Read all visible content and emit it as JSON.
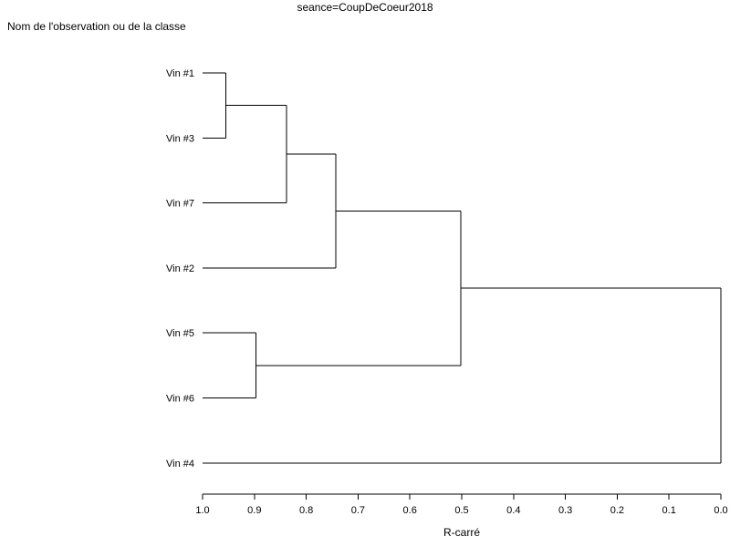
{
  "chart_data": {
    "type": "dendrogram",
    "title": "seance=CoupDeCoeur2018",
    "ylabel": "Nom de l'observation ou de la classe",
    "xlabel": "R-carré",
    "xlim": [
      1.0,
      0.0
    ],
    "xticks": [
      "1.0",
      "0.9",
      "0.8",
      "0.7",
      "0.6",
      "0.5",
      "0.4",
      "0.3",
      "0.2",
      "0.1",
      "0.0"
    ],
    "leaves": [
      "Vin #1",
      "Vin #3",
      "Vin #7",
      "Vin #2",
      "Vin #5",
      "Vin #6",
      "Vin #4"
    ],
    "merges": [
      {
        "a": "Vin #1",
        "b": "Vin #3",
        "r2": 0.955
      },
      {
        "a": "Vin #1+#3",
        "b": "Vin #7",
        "r2": 0.838
      },
      {
        "a": "Vin #1+#3+#7",
        "b": "Vin #2",
        "r2": 0.743
      },
      {
        "a": "Vin #5",
        "b": "Vin #6",
        "r2": 0.897
      },
      {
        "a": "Vin #1+#3+#7+#2",
        "b": "Vin #5+#6",
        "r2": 0.502
      },
      {
        "a": "Vin #1+#3+#7+#2+#5+#6",
        "b": "Vin #4",
        "r2": 0.0
      }
    ],
    "grid": false
  }
}
